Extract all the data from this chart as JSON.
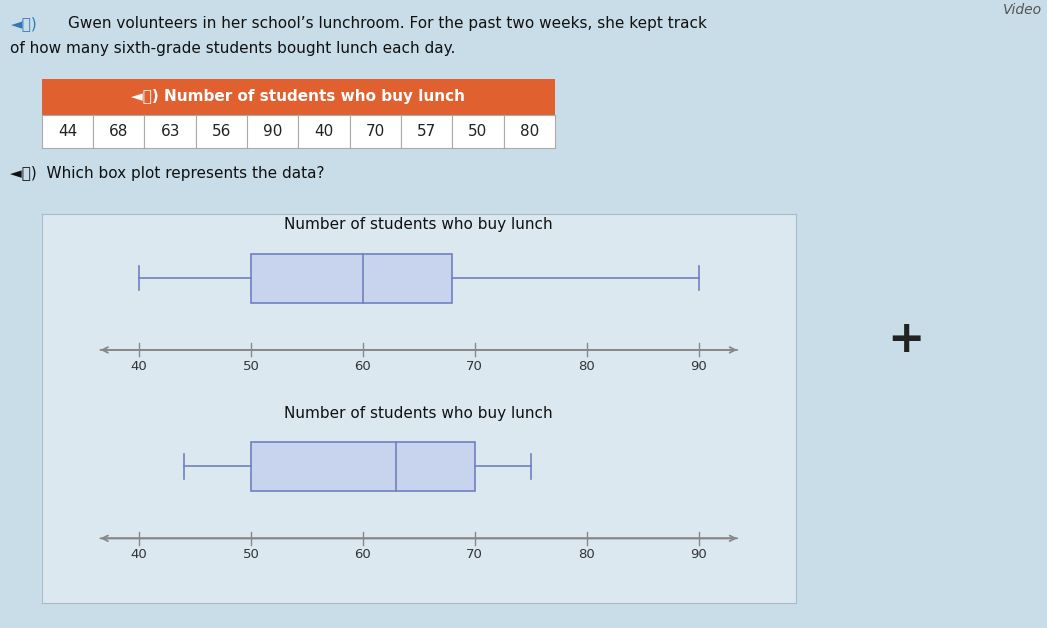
{
  "raw_data": [
    44,
    68,
    63,
    56,
    90,
    40,
    70,
    57,
    50,
    80
  ],
  "title_line1": "Gwen volunteers in her school’s lunchroom. For the past two weeks, she kept track",
  "title_line2": "of how many sixth-grade students bought lunch each day.",
  "question_text": "Which box plot represents the data?",
  "table_title": "◄⧗) Number of students who buy lunch",
  "table_values": [
    44,
    68,
    63,
    56,
    90,
    40,
    70,
    57,
    50,
    80
  ],
  "table_header_color": "#E06030",
  "bp1": {
    "title": "Number of students who buy lunch",
    "min": 40,
    "q1": 50,
    "median": 60,
    "q3": 68,
    "max": 90,
    "xticks": [
      40,
      50,
      60,
      70,
      80,
      90
    ]
  },
  "bp2": {
    "title": "Number of students who buy lunch",
    "min": 44,
    "q1": 50,
    "median": 63,
    "q3": 70,
    "max": 75,
    "xticks": [
      40,
      50,
      60,
      70,
      80,
      90
    ]
  },
  "box_facecolor": "#c8d4ee",
  "box_edgecolor": "#7080c0",
  "axis_color": "#888888",
  "bg_color": "#c8dde8",
  "panel_color": "#dce8f0",
  "text_color": "#222222",
  "video_label": "Video",
  "plus_label": "+",
  "xmin": 36,
  "xmax": 94
}
